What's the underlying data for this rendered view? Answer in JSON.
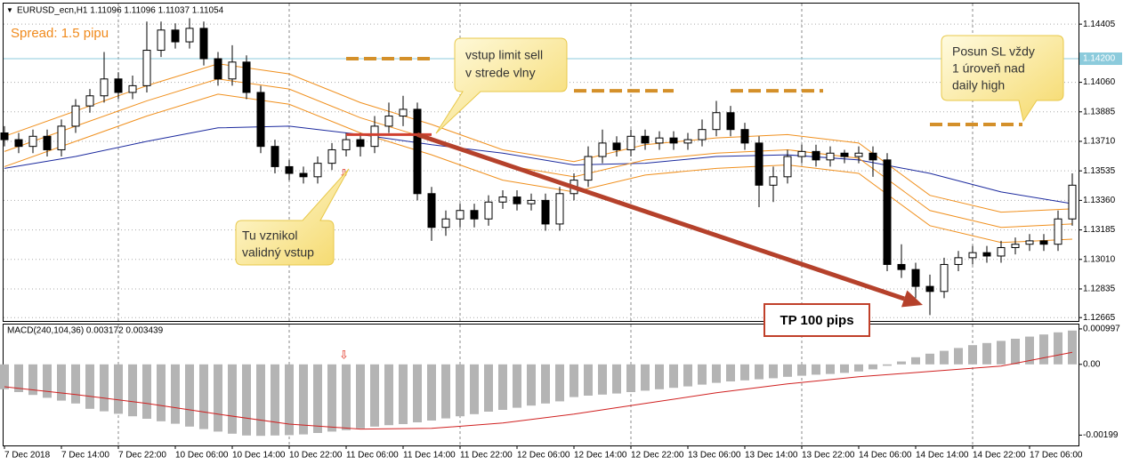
{
  "chart_data": {
    "type": "candlestick",
    "header": "EURUSD_ecn,H1  1.11096 1.11096 1.11037 1.11054",
    "spread_text": "Spread: 1.5 pipu",
    "ylim": [
      1.12645,
      1.14527
    ],
    "yticks": [
      1.14405,
      {
        "value": 1.1406,
        "label": "1.14060"
      },
      1.13885,
      {
        "value": 1.1371,
        "label": "1.13710"
      },
      1.13535,
      {
        "value": 1.1336,
        "label": "1.13360"
      },
      1.13185,
      {
        "value": 1.1301,
        "label": "1.13010"
      },
      1.12835,
      1.12665
    ],
    "grid": true,
    "xticks": [
      {
        "value": 0,
        "label": "7 Dec 2018"
      },
      {
        "value": 4,
        "label": "7 Dec 14:00"
      },
      {
        "value": 8,
        "label": "7 Dec 22:00"
      },
      {
        "value": 12,
        "label": "10 Dec 06:00"
      },
      {
        "value": 16,
        "label": "10 Dec 14:00"
      },
      {
        "value": 20,
        "label": "10 Dec 22:00"
      },
      {
        "value": 24,
        "label": "11 Dec 06:00"
      },
      {
        "value": 28,
        "label": "11 Dec 14:00"
      },
      {
        "value": 32,
        "label": "11 Dec 22:00"
      },
      {
        "value": 36,
        "label": "12 Dec 06:00"
      },
      {
        "value": 40,
        "label": "12 Dec 14:00"
      },
      {
        "value": 44,
        "label": "12 Dec 22:00"
      },
      {
        "value": 48,
        "label": "13 Dec 06:00"
      },
      {
        "value": 52,
        "label": "13 Dec 14:00"
      },
      {
        "value": 56,
        "label": "13 Dec 22:00"
      },
      {
        "value": 60,
        "label": "14 Dec 06:00"
      },
      {
        "value": 64,
        "label": "14 Dec 14:00"
      },
      {
        "value": 68,
        "label": "14 Dec 22:00"
      },
      {
        "value": 72,
        "label": "17 Dec 06:00"
      }
    ],
    "candles": {
      "open": [
        1.1376,
        1.1372,
        1.1368,
        1.1374,
        1.1366,
        1.138,
        1.1392,
        1.1398,
        1.1408,
        1.14,
        1.1404,
        1.1425,
        1.1437,
        1.143,
        1.1438,
        1.142,
        1.1408,
        1.1418,
        1.14,
        1.1368,
        1.1356,
        1.1352,
        1.135,
        1.1358,
        1.1366,
        1.1372,
        1.1368,
        1.138,
        1.1386,
        1.139,
        1.134,
        1.132,
        1.1325,
        1.133,
        1.1325,
        1.1335,
        1.1338,
        1.1334,
        1.1336,
        1.1322,
        1.134,
        1.1348,
        1.1362,
        1.137,
        1.1366,
        1.1374,
        1.137,
        1.1373,
        1.137,
        1.1372,
        1.1378,
        1.1388,
        1.1378,
        1.137,
        1.1345,
        1.135,
        1.1362,
        1.1365,
        1.136,
        1.1364,
        1.1362,
        1.1364,
        1.136,
        1.1298,
        1.1295,
        1.1285,
        1.1282,
        1.1298,
        1.1302,
        1.1305,
        1.1303,
        1.1308,
        1.131,
        1.1312,
        1.131,
        1.1325
      ],
      "high": [
        1.138,
        1.1376,
        1.1378,
        1.1378,
        1.1384,
        1.1396,
        1.1402,
        1.1424,
        1.1412,
        1.141,
        1.1442,
        1.1442,
        1.1441,
        1.1444,
        1.1442,
        1.1424,
        1.1428,
        1.1422,
        1.1404,
        1.1372,
        1.136,
        1.1356,
        1.1362,
        1.137,
        1.1376,
        1.1376,
        1.1386,
        1.1394,
        1.1398,
        1.1394,
        1.1344,
        1.133,
        1.1334,
        1.1334,
        1.1339,
        1.1342,
        1.1342,
        1.134,
        1.134,
        1.1344,
        1.1352,
        1.1368,
        1.1378,
        1.1374,
        1.1378,
        1.1378,
        1.1377,
        1.1377,
        1.1376,
        1.1384,
        1.1395,
        1.1392,
        1.1382,
        1.1374,
        1.1356,
        1.1366,
        1.1369,
        1.1369,
        1.1368,
        1.1366,
        1.1368,
        1.1368,
        1.1364,
        1.131,
        1.1299,
        1.1292,
        1.1302,
        1.1306,
        1.1309,
        1.1309,
        1.1312,
        1.1314,
        1.1316,
        1.1316,
        1.133,
        1.1352
      ],
      "low": [
        1.1368,
        1.1364,
        1.1364,
        1.1362,
        1.1362,
        1.1376,
        1.1388,
        1.1394,
        1.1396,
        1.1396,
        1.14,
        1.1421,
        1.1426,
        1.1426,
        1.1416,
        1.1404,
        1.1404,
        1.1396,
        1.1364,
        1.1352,
        1.1348,
        1.1346,
        1.1346,
        1.1354,
        1.1362,
        1.1362,
        1.1364,
        1.1376,
        1.138,
        1.1336,
        1.1312,
        1.1315,
        1.132,
        1.132,
        1.1321,
        1.1331,
        1.133,
        1.133,
        1.1318,
        1.1318,
        1.1336,
        1.1344,
        1.1358,
        1.1362,
        1.1362,
        1.1366,
        1.1366,
        1.1366,
        1.1366,
        1.1368,
        1.1374,
        1.1374,
        1.1366,
        1.1332,
        1.1335,
        1.1346,
        1.1358,
        1.1356,
        1.1356,
        1.1358,
        1.1358,
        1.135,
        1.1294,
        1.129,
        1.1278,
        1.1268,
        1.1278,
        1.1294,
        1.1298,
        1.1299,
        1.1299,
        1.1304,
        1.1306,
        1.1306,
        1.1306,
        1.1321
      ],
      "close": [
        1.1372,
        1.1368,
        1.1374,
        1.1366,
        1.138,
        1.1392,
        1.1398,
        1.1408,
        1.14,
        1.1404,
        1.1425,
        1.1437,
        1.143,
        1.1438,
        1.142,
        1.1408,
        1.1418,
        1.14,
        1.1368,
        1.1356,
        1.1352,
        1.135,
        1.1358,
        1.1366,
        1.1372,
        1.1368,
        1.138,
        1.1386,
        1.139,
        1.134,
        1.132,
        1.1325,
        1.133,
        1.1325,
        1.1335,
        1.1338,
        1.1334,
        1.1336,
        1.1322,
        1.134,
        1.1348,
        1.1362,
        1.137,
        1.1366,
        1.1374,
        1.137,
        1.1373,
        1.137,
        1.1372,
        1.1378,
        1.1388,
        1.1378,
        1.137,
        1.1345,
        1.135,
        1.1362,
        1.1365,
        1.136,
        1.1364,
        1.1362,
        1.1364,
        1.136,
        1.1298,
        1.1295,
        1.1285,
        1.1282,
        1.1298,
        1.1302,
        1.1305,
        1.1303,
        1.1308,
        1.131,
        1.1312,
        1.131,
        1.1325,
        1.1345
      ]
    },
    "lines": {
      "x": [
        0,
        5,
        10,
        15,
        20,
        25,
        30,
        35,
        40,
        45,
        50,
        55,
        60,
        65,
        70,
        75
      ],
      "series": [
        {
          "color": "#1c2a9e",
          "values": [
            1.1355,
            1.1362,
            1.1371,
            1.1379,
            1.138,
            1.1375,
            1.1369,
            1.1364,
            1.1357,
            1.1358,
            1.1362,
            1.1363,
            1.136,
            1.1352,
            1.1341,
            1.1334
          ]
        },
        {
          "color": "#f0901e",
          "values": [
            1.1374,
            1.1389,
            1.1404,
            1.1417,
            1.1411,
            1.1394,
            1.1381,
            1.1366,
            1.1359,
            1.1369,
            1.1373,
            1.1375,
            1.137,
            1.1339,
            1.1329,
            1.1331
          ]
        },
        {
          "color": "#f0901e",
          "values": [
            1.1365,
            1.138,
            1.1395,
            1.1408,
            1.1402,
            1.1385,
            1.1372,
            1.1357,
            1.135,
            1.136,
            1.1364,
            1.1366,
            1.1361,
            1.133,
            1.132,
            1.1322
          ]
        },
        {
          "color": "#f0901e",
          "values": [
            1.1356,
            1.1371,
            1.1386,
            1.1399,
            1.1393,
            1.1376,
            1.1363,
            1.1348,
            1.1341,
            1.1351,
            1.1355,
            1.1357,
            1.1352,
            1.1321,
            1.1311,
            1.1313
          ]
        }
      ]
    },
    "price_line": {
      "value": 1.142,
      "label": "1.14200",
      "color": "#8ccbdc"
    },
    "sl_levels": [
      {
        "value": 1.142,
        "from": 24,
        "to": 30
      },
      {
        "value": 1.1401,
        "from": 40,
        "to": 47
      },
      {
        "value": 1.1401,
        "from": 51,
        "to": 57.5
      },
      {
        "value": 1.1381,
        "from": 65,
        "to": 71.5
      }
    ],
    "entry_line": {
      "value": 1.1375,
      "from": 24,
      "to": 30
    },
    "tp_arrow": {
      "x": [
        29,
        64.5
      ],
      "y": [
        1.1375,
        1.1274
      ]
    },
    "callouts": {
      "entry": [
        "vstup limit sell",
        "v strede vlny"
      ],
      "signal": [
        "Tu vznikol",
        "validný vstup"
      ],
      "sl": [
        "Posun SL vždy",
        "1 úroveň nad",
        "daily high"
      ],
      "tp": "TP 100 pips"
    },
    "macd": {
      "title": "MACD(240,104,36) 0.003172 0.003439",
      "y2lim": [
        -0.00228,
        0.00112
      ],
      "y2ticks": [
        0.000997,
        {
          "value": 0,
          "label": "0.00"
        },
        -0.00199
      ],
      "histogram": [
        -0.0007,
        -0.00078,
        -0.00086,
        -0.00094,
        -0.00102,
        -0.0011,
        -0.00125,
        -0.00132,
        -0.00139,
        -0.00146,
        -0.00153,
        -0.0016,
        -0.00167,
        -0.00175,
        -0.00182,
        -0.00189,
        -0.00195,
        -0.002,
        -0.00201,
        -0.002,
        -0.00199,
        -0.00197,
        -0.00193,
        -0.00189,
        -0.00185,
        -0.0018,
        -0.00175,
        -0.00171,
        -0.00168,
        -0.00163,
        -0.00158,
        -0.00152,
        -0.00146,
        -0.0014,
        -0.00133,
        -0.00128,
        -0.00122,
        -0.00116,
        -0.0011,
        -0.00104,
        -0.00092,
        -0.00088,
        -0.00085,
        -0.00082,
        -0.00078,
        -0.00074,
        -0.0007,
        -0.00066,
        -0.00062,
        -0.00057,
        -0.00052,
        -0.00048,
        -0.00045,
        -0.00042,
        -0.00039,
        -0.00035,
        -0.00032,
        -0.00029,
        -0.00027,
        -0.00024,
        -0.0002,
        -0.00014,
        -4e-05,
        8e-05,
        0.0002,
        0.0003,
        0.00038,
        0.00046,
        0.00054,
        0.0006,
        0.00066,
        0.00072,
        0.00078,
        0.00084,
        0.0009,
        0.00095
      ],
      "histogram_color": "#b4b4b4",
      "signal_x": [
        0,
        5,
        10,
        15,
        20,
        25,
        30,
        35,
        40,
        45,
        50,
        55,
        60,
        65,
        70,
        75
      ],
      "signal": [
        -0.00063,
        -0.00085,
        -0.0011,
        -0.0014,
        -0.00168,
        -0.00182,
        -0.0018,
        -0.00165,
        -0.0014,
        -0.0011,
        -0.0008,
        -0.00055,
        -0.00035,
        -0.0002,
        -5e-05,
        0.00034
      ],
      "signal_color": "#d02020"
    }
  }
}
